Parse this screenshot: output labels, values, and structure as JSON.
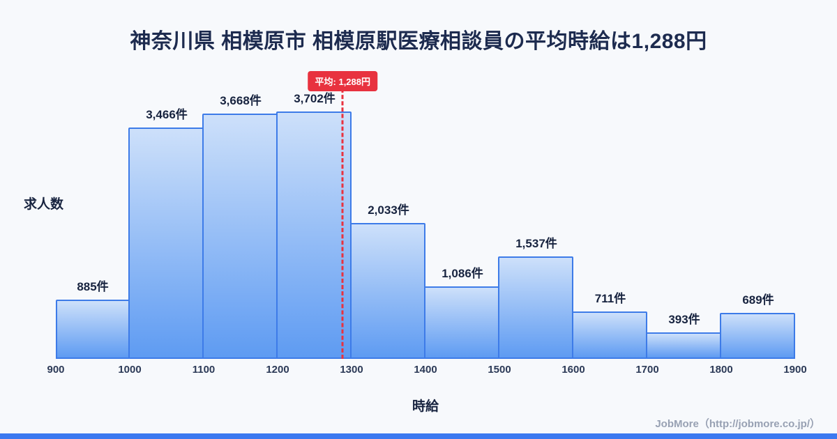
{
  "title": "神奈川県 相模原市 相模原駅医療相談員の平均時給は1,288円",
  "footer": "JobMore（http://jobmore.co.jp/）",
  "colors": {
    "background": "#f7f9fc",
    "title_text": "#1d2b4f",
    "bar_top": "#cde0fa",
    "bar_bottom": "#5e9bf2",
    "bar_border": "#3d7be8",
    "value_text": "#17233f",
    "axis_text": "#2c3a57",
    "average_red": "#e8323f",
    "footer_text": "#98a1b3",
    "accent_strip": "#3b79f0"
  },
  "chart_data": {
    "type": "bar",
    "title": "神奈川県 相模原市 相模原駅医療相談員の平均時給は1,288円",
    "xlabel": "時給",
    "ylabel": "求人数",
    "x_ticks": [
      "900",
      "1000",
      "1100",
      "1200",
      "1300",
      "1400",
      "1500",
      "1600",
      "1700",
      "1800",
      "1900"
    ],
    "bin_edges": [
      900,
      1000,
      1100,
      1200,
      1300,
      1400,
      1500,
      1600,
      1700,
      1800,
      1900
    ],
    "values": [
      885,
      3466,
      3668,
      3702,
      2033,
      1086,
      1537,
      711,
      393,
      689
    ],
    "value_labels": [
      "885件",
      "3,466件",
      "3,668件",
      "3,702件",
      "2,033件",
      "1,086件",
      "1,537件",
      "711件",
      "393件",
      "689件"
    ],
    "average": {
      "value": 1288,
      "label": "平均: 1,288円"
    },
    "xlim": [
      900,
      1900
    ],
    "ylim": [
      0,
      3702
    ],
    "grid": false,
    "legend": false
  }
}
